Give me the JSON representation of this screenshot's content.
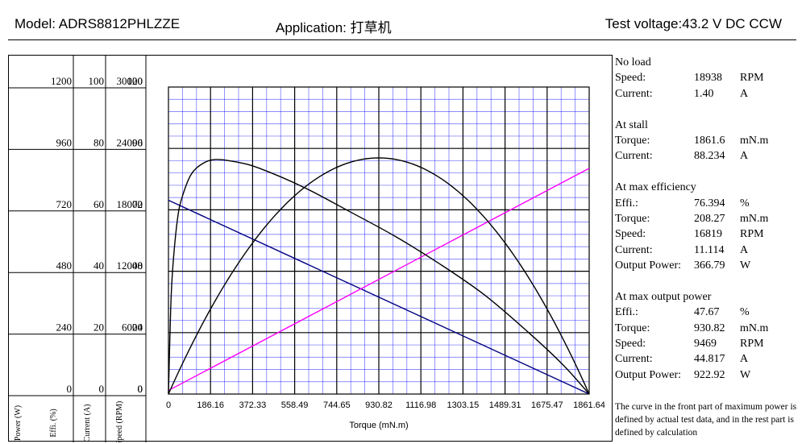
{
  "header": {
    "model": "Model: ADRS8812PHLZZE",
    "application": "Application:  打草机",
    "voltage": "Test voltage:43.2  V  DC    CCW"
  },
  "info": {
    "no_load": {
      "title": "No load",
      "rows": [
        {
          "k": "Speed:",
          "v": "18938",
          "u": "RPM"
        },
        {
          "k": "Current:",
          "v": "1.40",
          "u": "A"
        }
      ]
    },
    "stall": {
      "title": "At stall",
      "rows": [
        {
          "k": "Torque:",
          "v": "1861.6",
          "u": "mN.m"
        },
        {
          "k": "Current:",
          "v": "88.234",
          "u": "A"
        }
      ]
    },
    "max_eff": {
      "title": "At max efficiency",
      "rows": [
        {
          "k": "Effi.:",
          "v": "76.394",
          "u": "%"
        },
        {
          "k": "Torque:",
          "v": "208.27",
          "u": "mN.m"
        },
        {
          "k": "Speed:",
          "v": "16819",
          "u": "RPM"
        },
        {
          "k": "Current:",
          "v": "11.114",
          "u": "A"
        },
        {
          "k": "Output Power:",
          "v": "366.79",
          "u": "W"
        }
      ]
    },
    "max_power": {
      "title": "At max output power",
      "rows": [
        {
          "k": "Effi.:",
          "v": "47.67",
          "u": "%"
        },
        {
          "k": "Torque:",
          "v": "930.82",
          "u": "mN.m"
        },
        {
          "k": "Speed:",
          "v": "9469",
          "u": "RPM"
        },
        {
          "k": "Current:",
          "v": "44.817",
          "u": "A"
        },
        {
          "k": "Output Power:",
          "v": "922.92",
          "u": "W"
        }
      ]
    }
  },
  "note": "The curve in the front part of maximum power is defined by actual test data, and in the rest part is defined by calculation",
  "chart_data": {
    "type": "line",
    "xlabel": "Torque (mN.m)",
    "x_ticks": [
      "0",
      "186.16",
      "372.33",
      "558.49",
      "744.65",
      "930.82",
      "1116.98",
      "1303.15",
      "1489.31",
      "1675.47",
      "1861.64"
    ],
    "xlim": [
      0,
      1861.64
    ],
    "grid": true,
    "axes": [
      {
        "label": "Power (W)",
        "ticks": [
          "1200",
          "960",
          "720",
          "480",
          "240",
          "0"
        ],
        "range": [
          0,
          1200
        ]
      },
      {
        "label": "Effi. (%)",
        "ticks": [
          "100",
          "80",
          "60",
          "40",
          "20",
          "0"
        ],
        "range": [
          0,
          100
        ]
      },
      {
        "label": "Current (A)",
        "ticks": [
          "120",
          "96",
          "72",
          "48",
          "24",
          "0"
        ],
        "range": [
          0,
          120
        ]
      },
      {
        "label": "Speed (RPM)",
        "ticks": [
          "30000",
          "24000",
          "18000",
          "12000",
          "6000",
          "0"
        ],
        "range": [
          0,
          30000
        ]
      }
    ],
    "colors": {
      "speed": "#000080",
      "current": "#ff00ff",
      "power": "#000000",
      "efficiency": "#000000",
      "grid_minor": "#0000ff",
      "grid_major": "#000000"
    },
    "series": [
      {
        "key": "speed",
        "axis": 3,
        "x": [
          0,
          1861.64
        ],
        "y": [
          18938,
          0
        ]
      },
      {
        "key": "current",
        "axis": 2,
        "x": [
          0,
          1861.64
        ],
        "y": [
          1.4,
          88.234
        ]
      },
      {
        "key": "power",
        "axis": 0,
        "x": [
          0,
          186.16,
          372.33,
          558.49,
          744.65,
          930.82,
          1116.98,
          1303.15,
          1489.31,
          1675.47,
          1861.64
        ],
        "y": [
          0,
          332,
          590,
          775,
          886,
          923,
          886,
          775,
          590,
          332,
          0
        ]
      },
      {
        "key": "efficiency",
        "axis": 1,
        "x": [
          0,
          10,
          20,
          40,
          60,
          100,
          150,
          208.27,
          300,
          400,
          600,
          800,
          1000,
          1200,
          1400,
          1600,
          1750,
          1861.64
        ],
        "y": [
          0,
          28,
          42,
          57,
          64,
          71.5,
          75,
          76.394,
          75.6,
          73.6,
          67.3,
          59.5,
          51.5,
          42.4,
          32.2,
          19.6,
          9.2,
          0
        ]
      }
    ]
  }
}
